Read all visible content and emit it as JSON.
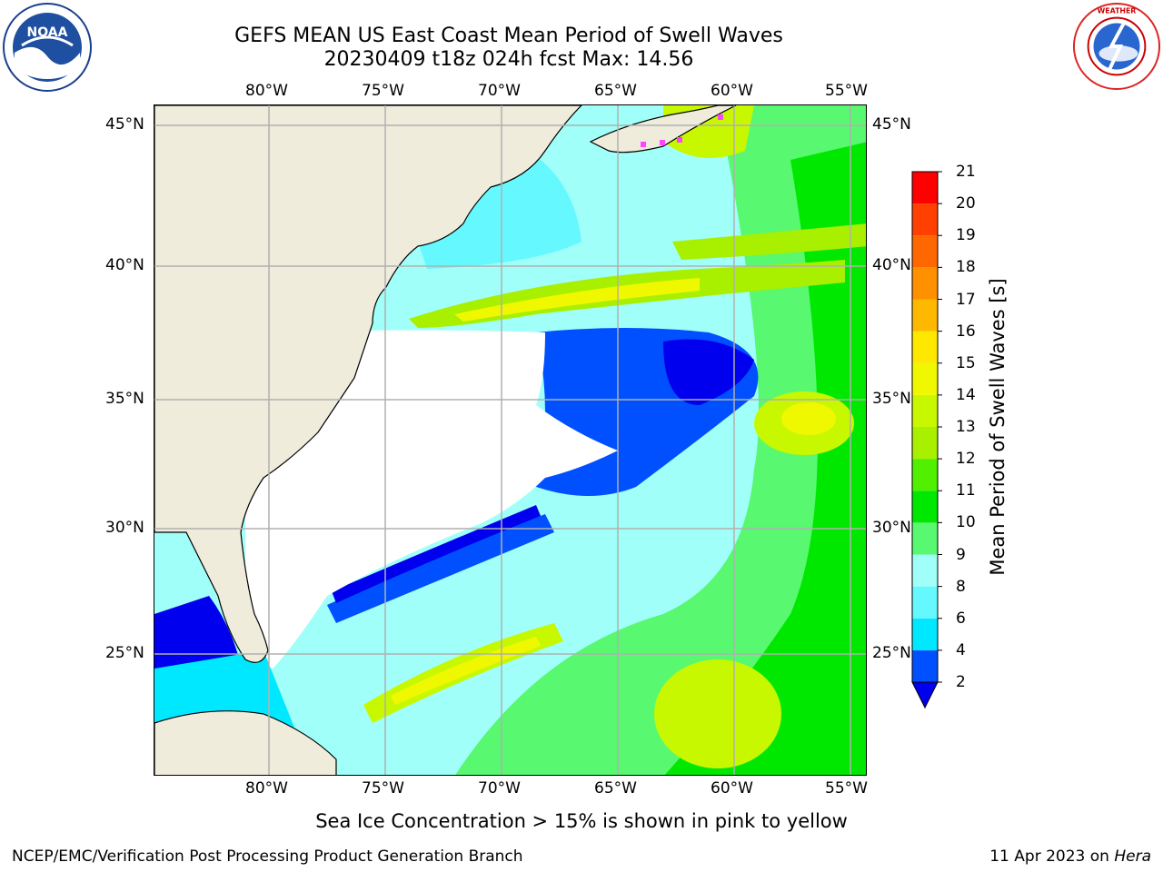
{
  "header": {
    "title_line1": "GEFS MEAN US East Coast Mean Period of Swell Waves",
    "title_line2": "20230409 t18z 024h fcst   Max: 14.56"
  },
  "map": {
    "lon_ticks": [
      "80°W",
      "75°W",
      "70°W",
      "65°W",
      "60°W",
      "55°W"
    ],
    "lat_ticks": [
      "45°N",
      "40°N",
      "35°N",
      "30°N",
      "25°N"
    ],
    "colors": {
      "land": "#efecdc",
      "no_data": "#ffffff",
      "grid": "#b0b0b0",
      "coast": "#000000"
    }
  },
  "colorbar": {
    "label": "Mean Period of Swell Waves [s]",
    "ticks": [
      "2",
      "4",
      "6",
      "8",
      "9",
      "10",
      "11",
      "12",
      "13",
      "14",
      "15",
      "16",
      "17",
      "18",
      "19",
      "20",
      "21"
    ],
    "colors": [
      "#0050ff",
      "#00e8ff",
      "#66f8ff",
      "#a0fff8",
      "#58f870",
      "#00e800",
      "#50f000",
      "#a8f000",
      "#c8f800",
      "#f0f800",
      "#ffe800",
      "#ffb800",
      "#ff9000",
      "#ff6800",
      "#ff4000",
      "#ff0000"
    ],
    "extend_color": "#0000ee"
  },
  "note": "Sea Ice Concentration > 15% is shown in pink to yellow",
  "footer": {
    "left": "NCEP/EMC/Verification Post Processing Product Generation Branch",
    "date": "11 Apr 2023 on ",
    "machine": "Hera"
  },
  "logos": {
    "left": "NOAA",
    "right": "NATIONAL WEATHER SERVICE"
  }
}
